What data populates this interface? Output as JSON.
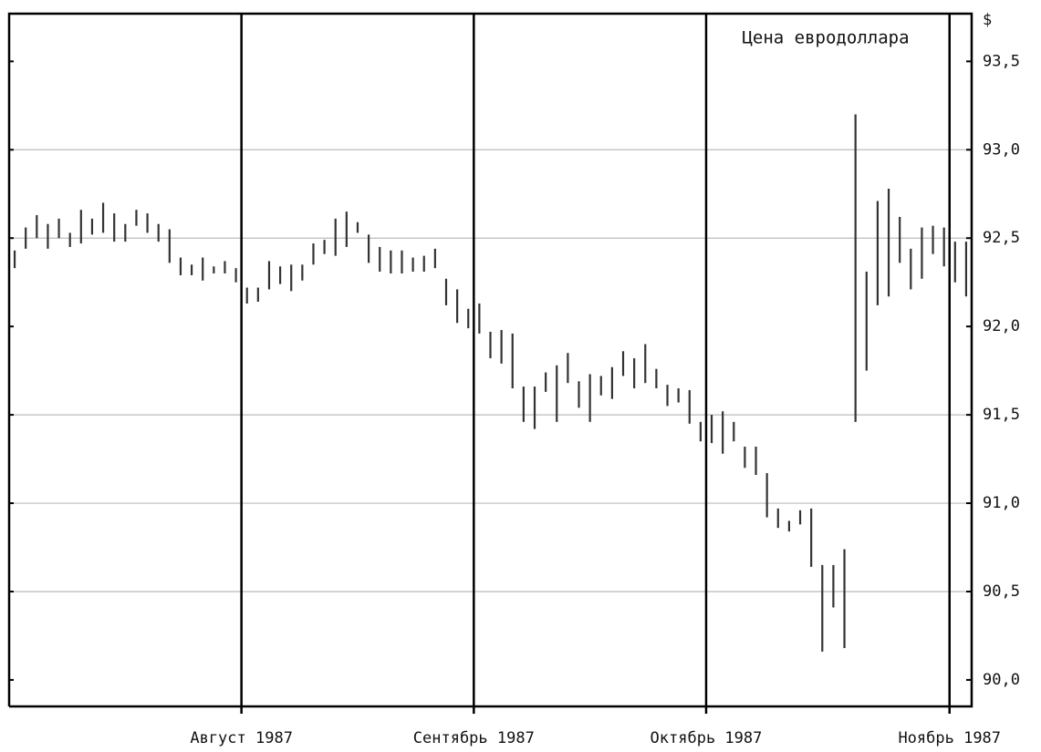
{
  "chart_data": {
    "type": "ohlc",
    "title": "Цена евродоллара",
    "y_axis_label": "$",
    "categories": [
      null,
      null,
      null,
      null,
      null,
      null,
      null,
      null,
      null,
      null,
      null,
      null,
      null,
      null,
      null,
      null,
      null,
      null,
      null,
      null,
      null,
      "Август 1987",
      null,
      null,
      null,
      null,
      null,
      null,
      null,
      null,
      null,
      null,
      null,
      null,
      null,
      null,
      null,
      null,
      null,
      null,
      null,
      null,
      "Сентябрь 1987",
      null,
      null,
      null,
      null,
      null,
      null,
      null,
      null,
      null,
      null,
      null,
      null,
      null,
      null,
      null,
      null,
      null,
      null,
      null,
      null,
      "Октябрь 1987",
      null,
      null,
      null,
      null,
      null,
      null,
      null,
      null,
      null,
      null,
      null,
      null,
      null,
      null,
      null,
      null,
      null,
      null,
      null,
      null,
      null,
      "Ноябрь 1987",
      null
    ],
    "high": [
      92.43,
      92.56,
      92.63,
      92.58,
      92.61,
      92.53,
      92.66,
      92.61,
      92.7,
      92.64,
      92.58,
      92.66,
      92.64,
      92.58,
      92.55,
      92.39,
      92.35,
      92.39,
      92.34,
      92.37,
      92.33,
      92.22,
      92.22,
      92.37,
      92.34,
      92.35,
      92.35,
      92.47,
      92.49,
      92.61,
      92.65,
      92.59,
      92.52,
      92.45,
      92.43,
      92.43,
      92.39,
      92.4,
      92.44,
      92.27,
      92.21,
      92.1,
      92.13,
      91.97,
      91.98,
      91.96,
      91.66,
      91.66,
      91.74,
      91.78,
      91.85,
      91.69,
      91.73,
      91.72,
      91.77,
      91.86,
      91.82,
      91.9,
      91.76,
      91.67,
      91.65,
      91.64,
      91.46,
      91.5,
      91.52,
      91.46,
      91.32,
      91.32,
      91.17,
      90.97,
      90.9,
      90.96,
      90.97,
      90.65,
      90.65,
      90.74,
      93.2,
      92.31,
      92.71,
      92.78,
      92.62,
      92.44,
      92.56,
      92.57,
      92.56,
      92.48,
      92.48
    ],
    "low": [
      92.33,
      92.44,
      92.5,
      92.44,
      92.5,
      92.45,
      92.47,
      92.52,
      92.53,
      92.48,
      92.48,
      92.57,
      92.53,
      92.48,
      92.36,
      92.29,
      92.29,
      92.26,
      92.3,
      92.3,
      92.25,
      92.13,
      92.14,
      92.21,
      92.24,
      92.2,
      92.26,
      92.35,
      92.41,
      92.4,
      92.45,
      92.53,
      92.36,
      92.31,
      92.3,
      92.3,
      92.31,
      92.31,
      92.33,
      92.12,
      92.02,
      91.99,
      91.96,
      91.82,
      91.79,
      91.65,
      91.46,
      91.42,
      91.63,
      91.46,
      91.68,
      91.54,
      91.46,
      91.61,
      91.59,
      91.72,
      91.65,
      91.68,
      91.65,
      91.55,
      91.57,
      91.45,
      91.35,
      91.34,
      91.28,
      91.35,
      91.2,
      91.16,
      90.92,
      90.86,
      90.84,
      90.88,
      90.64,
      90.16,
      90.41,
      90.18,
      91.46,
      91.75,
      92.12,
      92.17,
      92.36,
      92.21,
      92.27,
      92.41,
      92.34,
      92.25,
      92.17
    ],
    "color": "#333333",
    "ylim": [
      89.85,
      93.77
    ],
    "yticks": [
      {
        "value": 90.0,
        "label": "90,0"
      },
      {
        "value": 90.5,
        "label": "90,5"
      },
      {
        "value": 91.0,
        "label": "91,0"
      },
      {
        "value": 91.5,
        "label": "91,5"
      },
      {
        "value": 92.0,
        "label": "92,0"
      },
      {
        "value": 92.5,
        "label": "92,5"
      },
      {
        "value": 93.0,
        "label": "93,0"
      },
      {
        "value": 93.5,
        "label": "93,5"
      }
    ],
    "grid_values": [
      90.5,
      91.0,
      91.5,
      92.5,
      93.0
    ],
    "grid_color": "#bbbbbb"
  }
}
